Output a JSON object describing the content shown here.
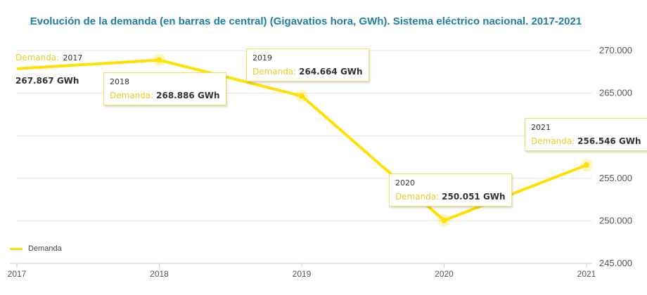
{
  "chart_data": {
    "type": "line",
    "title": "Evolución de la demanda (en barras de central) (Gigavatios hora, GWh). Sistema eléctrico nacional. 2017-2021",
    "xlabel": "",
    "ylabel": "",
    "categories": [
      "2017",
      "2018",
      "2019",
      "2020",
      "2021"
    ],
    "ylim": [
      245000,
      270000
    ],
    "yticks": [
      245000,
      250000,
      255000,
      260000,
      265000,
      270000
    ],
    "ytick_labels": [
      "245.000",
      "250.000",
      "255.000",
      "",
      "265.000",
      "270.000"
    ],
    "grid": true,
    "legend": "bottom-left",
    "series": [
      {
        "name": "Demanda",
        "values": [
          267867,
          268886,
          264664,
          250051,
          256546
        ],
        "labels": [
          "267.867 GWh",
          "268.886 GWh",
          "264.664 GWh",
          "250.051 GWh",
          "256.546 GWh"
        ]
      }
    ]
  },
  "tooltip_label": "Demanda:",
  "line_color": "#ffe000",
  "text_color": "#333333"
}
